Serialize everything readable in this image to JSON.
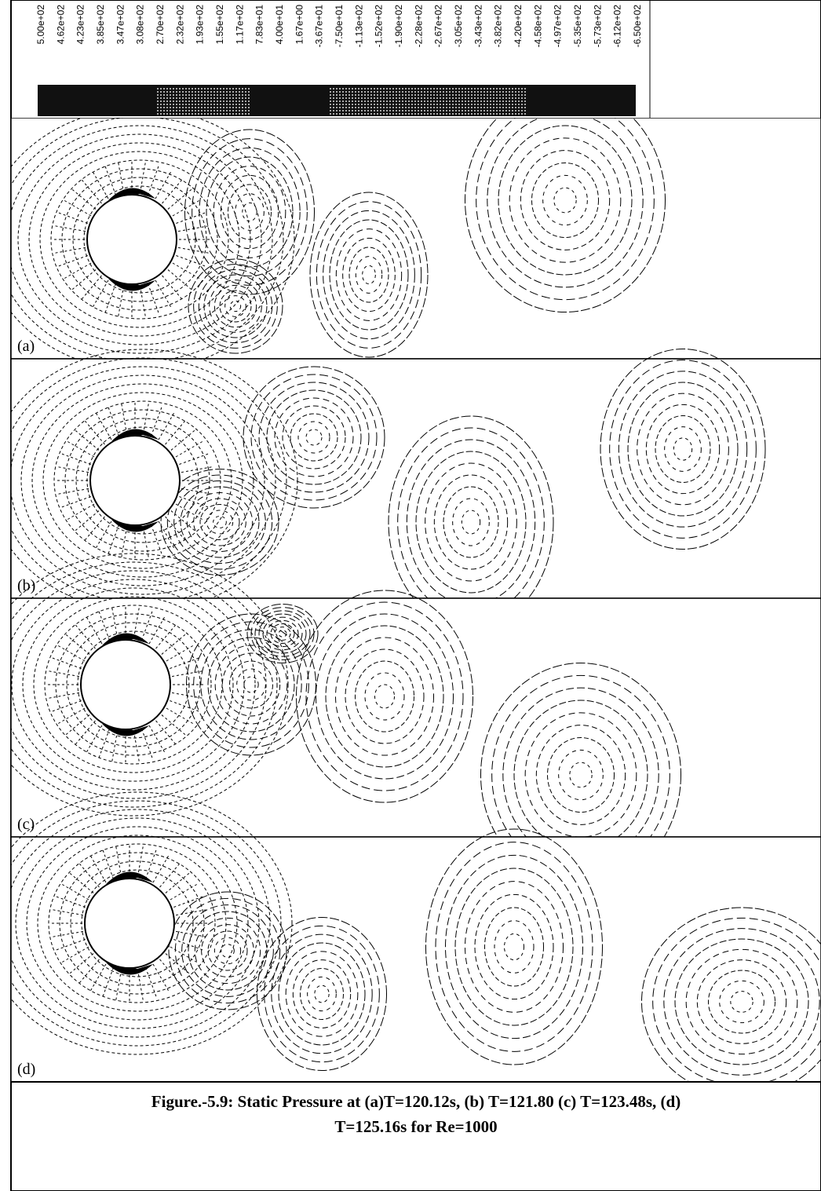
{
  "colorbar": {
    "labels": [
      "5.00e+02",
      "4.62e+02",
      "4.23e+02",
      "3.85e+02",
      "3.47e+02",
      "3.08e+02",
      "2.70e+02",
      "2.32e+02",
      "1.93e+02",
      "1.55e+02",
      "1.17e+02",
      "7.83e+01",
      "4.00e+01",
      "1.67e+00",
      "-3.67e+01",
      "-7.50e+01",
      "-1.13e+02",
      "-1.52e+02",
      "-1.90e+02",
      "-2.28e+02",
      "-2.67e+02",
      "-3.05e+02",
      "-3.43e+02",
      "-3.82e+02",
      "-4.20e+02",
      "-4.58e+02",
      "-4.97e+02",
      "-5.35e+02",
      "-5.73e+02",
      "-6.12e+02",
      "-6.50e+02"
    ]
  },
  "panels": [
    {
      "label": "(a)"
    },
    {
      "label": "(b)"
    },
    {
      "label": "(c)"
    },
    {
      "label": "(d)"
    }
  ],
  "caption": {
    "lines": [
      "Figure.-5.9: Static Pressure at (a)T=120.12s, (b) T=121.80 (c) T=123.48s, (d)",
      "T=125.16s for Re=1000"
    ]
  }
}
